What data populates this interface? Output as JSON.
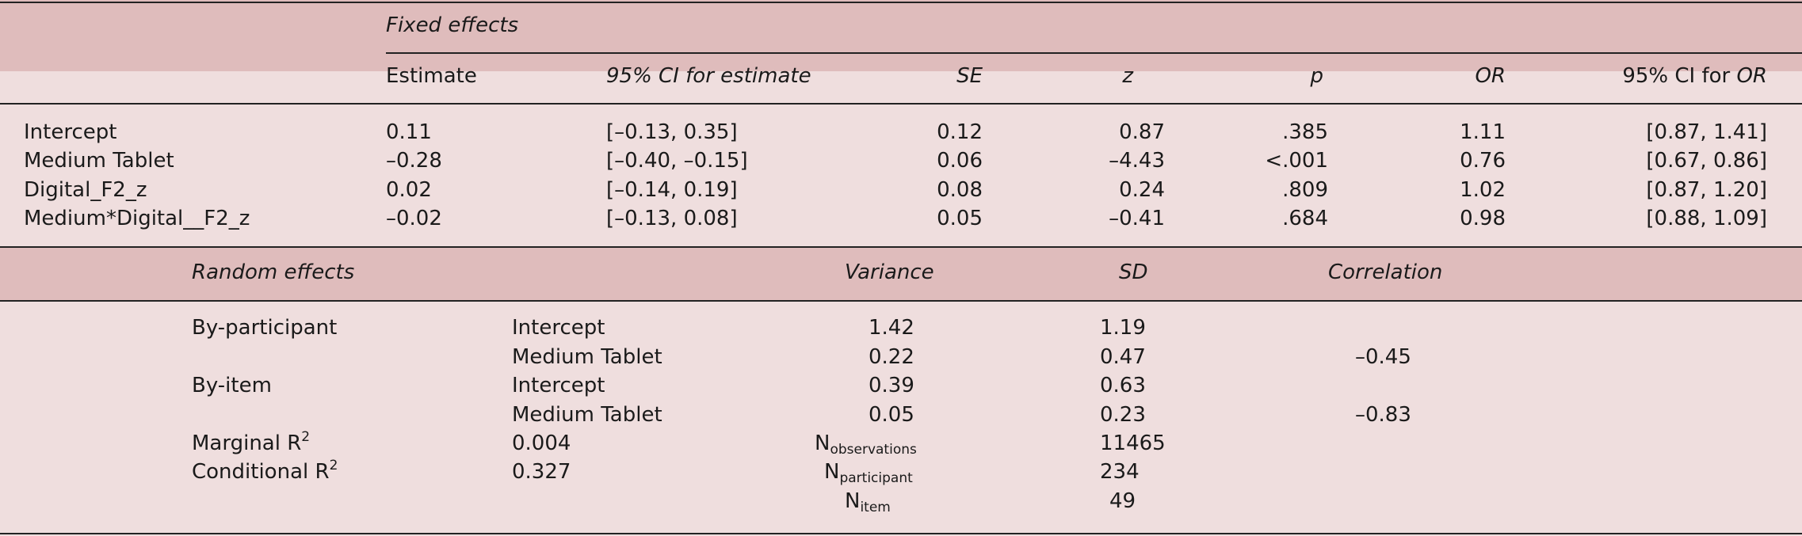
{
  "fixed": {
    "section_label": "Fixed effects",
    "headers": {
      "estimate": "Estimate",
      "ci_estimate_prefix": "95% CI for estimate",
      "se": "SE",
      "z": "z",
      "p": "p",
      "or": "OR",
      "ci_or_prefix": "95% CI for ",
      "ci_or_suffix": "OR"
    },
    "rows": [
      {
        "term": "Intercept",
        "estimate": "0.11",
        "ci": "[–0.13, 0.35]",
        "se": "0.12",
        "z": "0.87",
        "p": ".385",
        "or": "1.11",
        "ci_or": "[0.87, 1.41]"
      },
      {
        "term": "Medium Tablet",
        "estimate": "–0.28",
        "ci": "[–0.40, –0.15]",
        "se": "0.06",
        "z": "–4.43",
        "p": "<.001",
        "or": "0.76",
        "ci_or": "[0.67, 0.86]"
      },
      {
        "term": "Digital_F2_z",
        "estimate": "0.02",
        "ci": "[–0.14, 0.19]",
        "se": "0.08",
        "z": "0.24",
        "p": ".809",
        "or": "1.02",
        "ci_or": "[0.87, 1.20]"
      },
      {
        "term": "Medium*Digital__F2_z",
        "estimate": "–0.02",
        "ci": "[–0.13, 0.08]",
        "se": "0.05",
        "z": "–0.41",
        "p": ".684",
        "or": "0.98",
        "ci_or": "[0.88, 1.09]"
      }
    ]
  },
  "random": {
    "headers": {
      "section_label": "Random effects",
      "variance": "Variance",
      "sd": "SD",
      "correlation": "Correlation"
    },
    "rows": [
      {
        "group": "By-participant",
        "term": "Intercept",
        "variance": "1.42",
        "sd": "1.19",
        "corr": ""
      },
      {
        "group": "",
        "term": "Medium Tablet",
        "variance": "0.22",
        "sd": "0.47",
        "corr": "–0.45"
      },
      {
        "group": "By-item",
        "term": "Intercept",
        "variance": "0.39",
        "sd": "0.63",
        "corr": ""
      },
      {
        "group": "",
        "term": "Medium Tablet",
        "variance": "0.05",
        "sd": "0.23",
        "corr": "–0.83"
      }
    ],
    "fit": {
      "marginal_label": "Marginal R",
      "marginal_sup": "2",
      "marginal_value": "0.004",
      "conditional_label": "Conditional R",
      "conditional_sup": "2",
      "conditional_value": "0.327",
      "n_obs_main": "N",
      "n_obs_sub": "observations",
      "n_obs_value": "11465",
      "n_part_main": "N",
      "n_part_sub": "participant",
      "n_part_value": "234",
      "n_item_main": "N",
      "n_item_sub": "item",
      "n_item_value": "49"
    }
  }
}
